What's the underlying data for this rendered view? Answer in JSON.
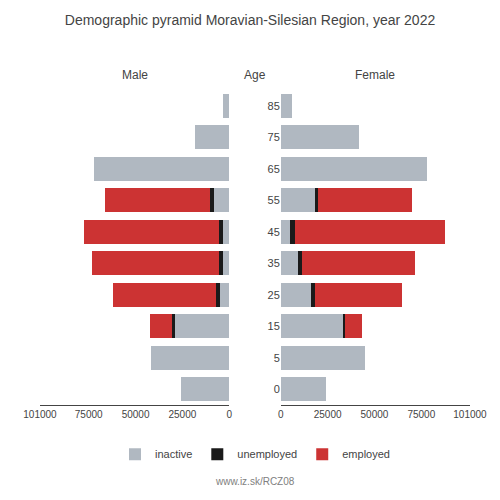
{
  "chart_data": [
    {
      "type": "bar",
      "title": "Demographic pyramid Moravian-Silesian Region, year 2022",
      "subtitle": "Male",
      "annotations": [
        "www.iz.sk/RCZ08"
      ],
      "orientation": "horizontal",
      "stacked": true,
      "categories": [
        "0",
        "5",
        "15",
        "25",
        "35",
        "45",
        "55",
        "65",
        "75",
        "85"
      ],
      "series": [
        {
          "name": "inactive",
          "color": "#b0b8c1",
          "values": [
            26000,
            42000,
            29000,
            5000,
            3500,
            3500,
            8000,
            72000,
            18000,
            3500
          ]
        },
        {
          "name": "unemployed",
          "color": "#1a1a1a",
          "values": [
            0,
            0,
            1500,
            2000,
            2000,
            2000,
            2500,
            0,
            0,
            0
          ]
        },
        {
          "name": "employed",
          "color": "#cc3333",
          "values": [
            0,
            0,
            12000,
            55000,
            68000,
            72000,
            56000,
            0,
            0,
            0
          ]
        }
      ],
      "xlim": [
        101000,
        0
      ],
      "xticks": [
        0,
        25000,
        50000,
        75000,
        101000
      ],
      "grid": false,
      "tick_labels": "x"
    },
    {
      "type": "bar",
      "subtitle": "Female",
      "ylabel": "Age",
      "orientation": "horizontal",
      "stacked": true,
      "categories": [
        "0",
        "5",
        "15",
        "25",
        "35",
        "45",
        "55",
        "65",
        "75",
        "85"
      ],
      "series": [
        {
          "name": "inactive",
          "color": "#b0b8c1",
          "values": [
            24000,
            45000,
            33000,
            16000,
            9000,
            5000,
            18000,
            78000,
            42000,
            6000
          ]
        },
        {
          "name": "unemployed",
          "color": "#1a1a1a",
          "values": [
            0,
            0,
            1500,
            2500,
            2500,
            2500,
            2000,
            0,
            0,
            0
          ]
        },
        {
          "name": "employed",
          "color": "#cc3333",
          "values": [
            0,
            0,
            9000,
            46000,
            60000,
            80000,
            50000,
            0,
            0,
            0
          ]
        }
      ],
      "xlim": [
        0,
        101000
      ],
      "xticks": [
        0,
        25000,
        50000,
        75000,
        101000
      ],
      "grid": false,
      "tick_labels": true,
      "legend": "bottom"
    }
  ]
}
